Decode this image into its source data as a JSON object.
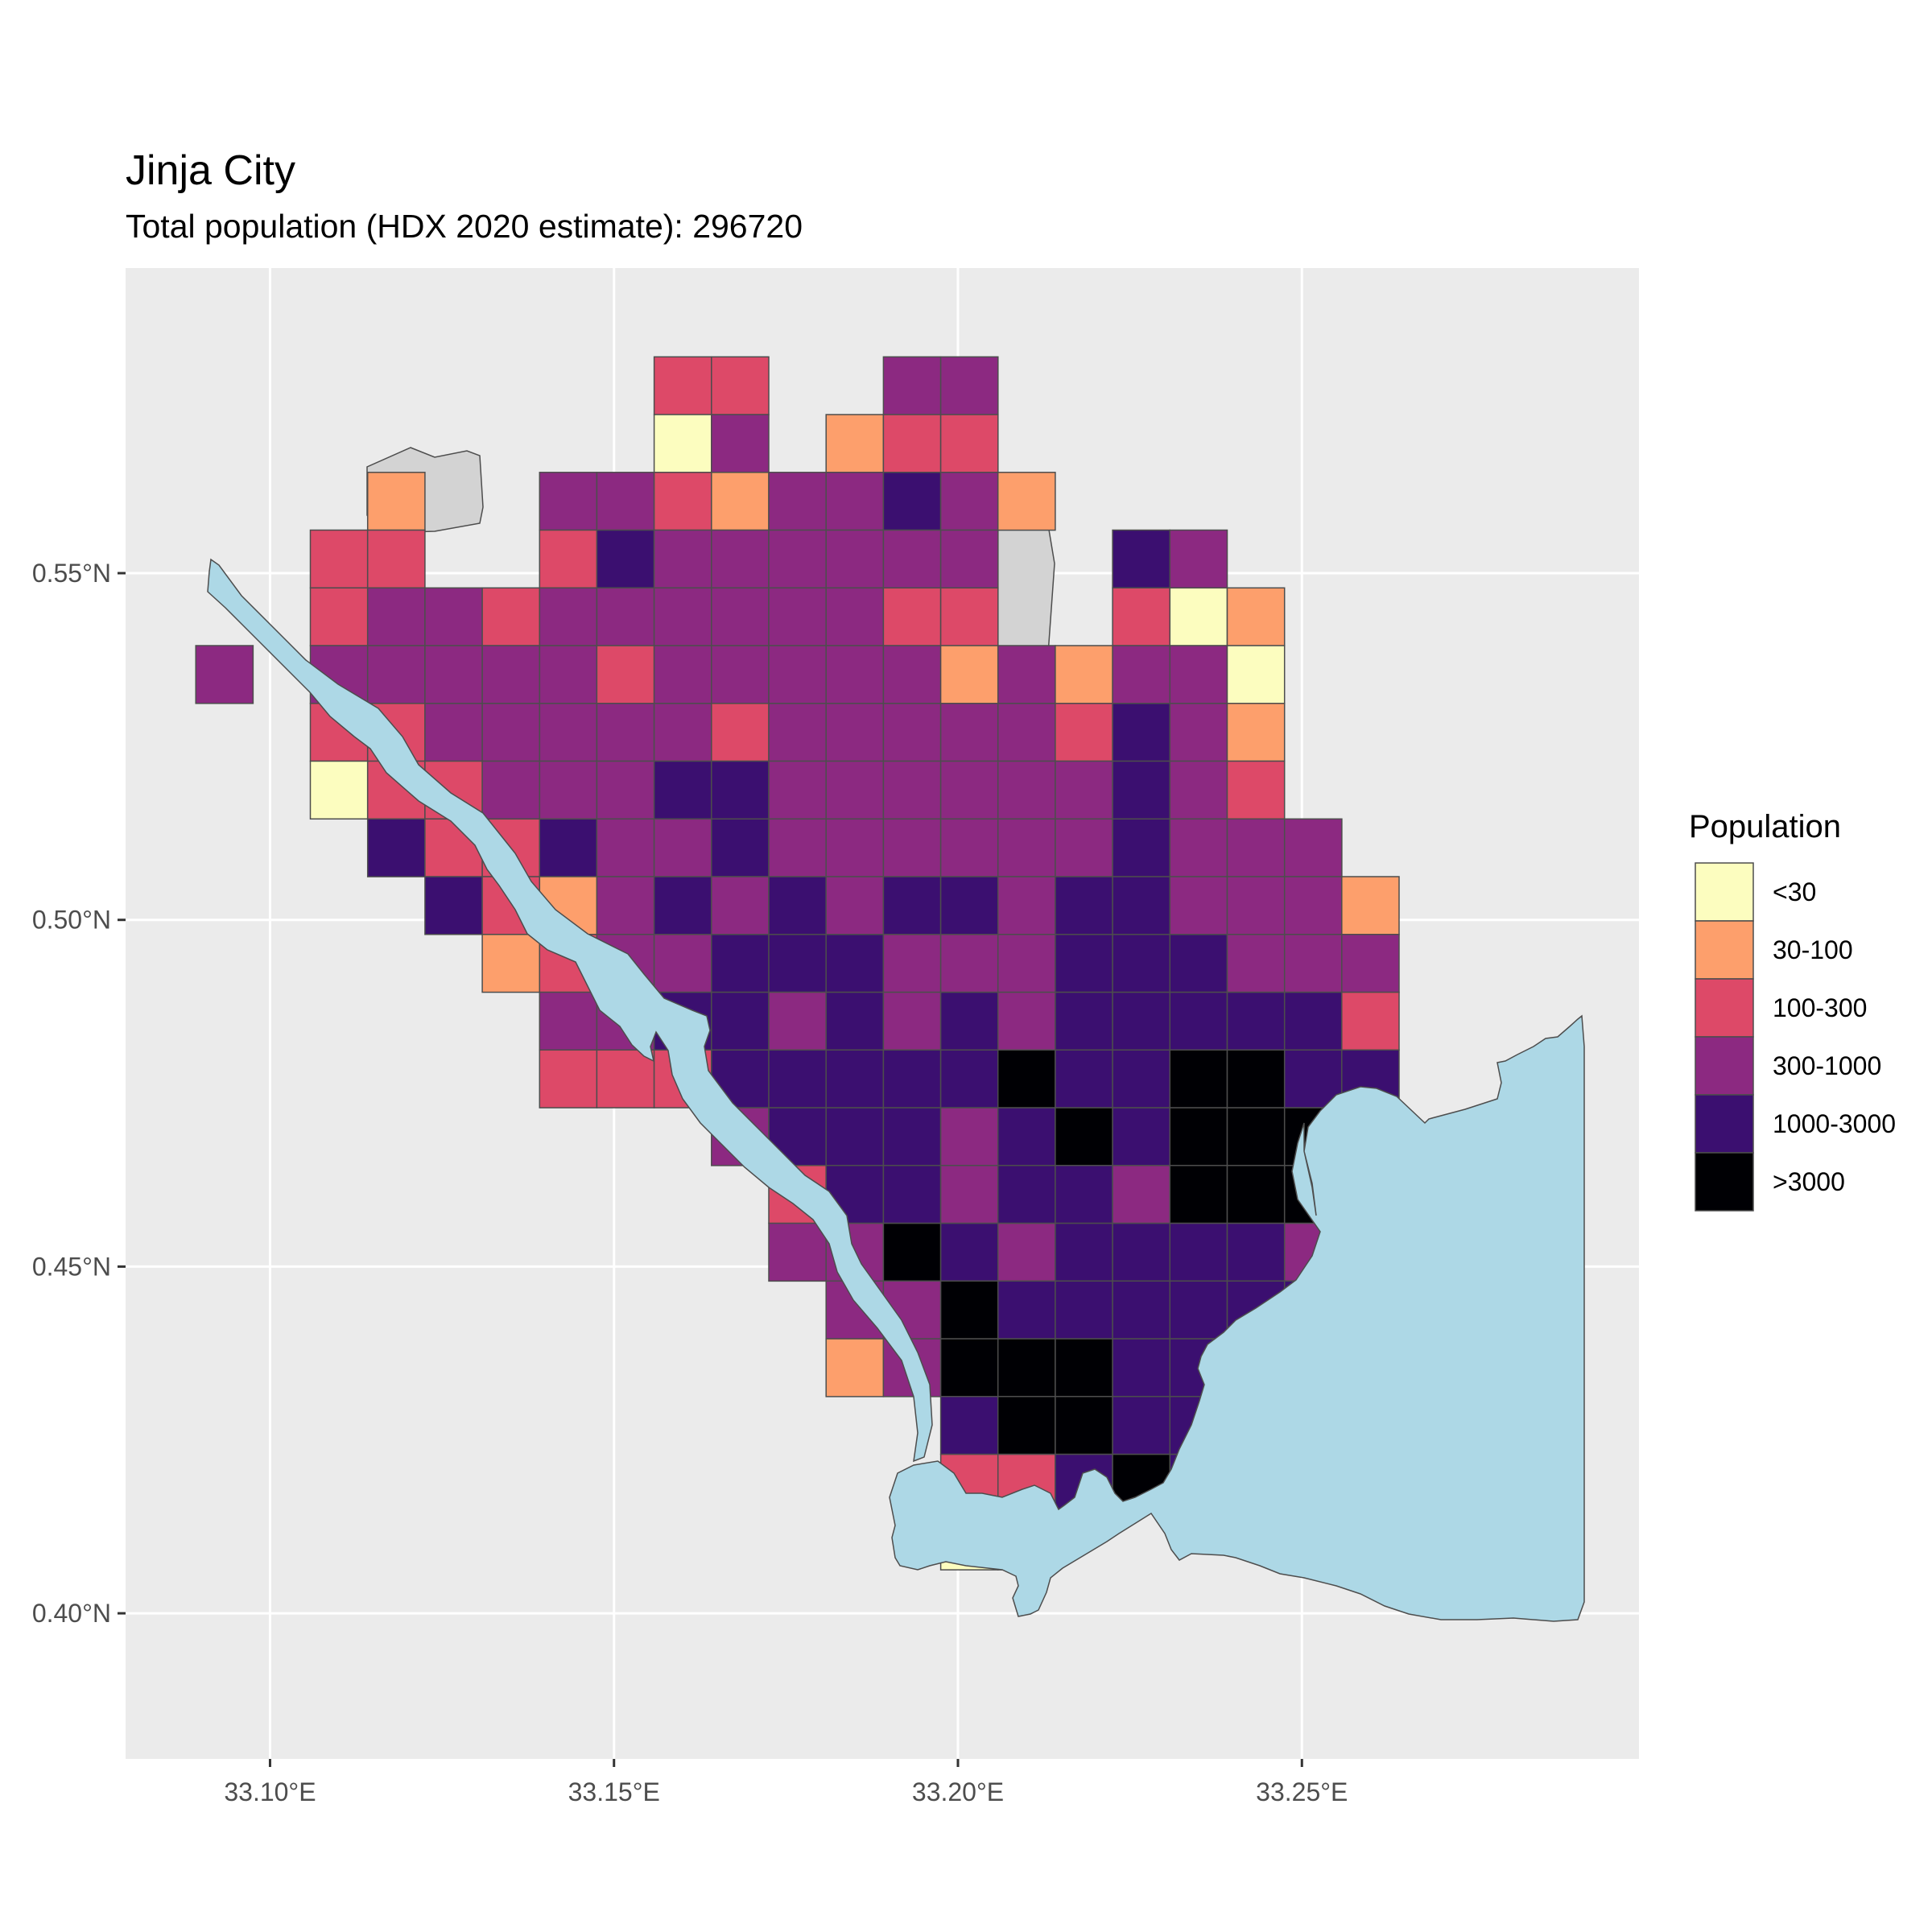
{
  "map": {
    "title": "Jinja City",
    "subtitle": "Total population (HDX 2020 estimate): 296720",
    "lon_ticks": [
      {
        "value": 33.1,
        "label": "33.10°E"
      },
      {
        "value": 33.15,
        "label": "33.15°E"
      },
      {
        "value": 33.2,
        "label": "33.20°E"
      },
      {
        "value": 33.25,
        "label": "33.25°E"
      }
    ],
    "lat_ticks": [
      {
        "value": 0.55,
        "label": "0.55°N"
      },
      {
        "value": 0.5,
        "label": "0.50°N"
      },
      {
        "value": 0.45,
        "label": "0.45°N"
      },
      {
        "value": 0.4,
        "label": "0.40°N"
      }
    ],
    "lon_range": [
      33.079,
      33.299
    ],
    "lat_range": [
      0.379,
      0.594
    ],
    "panel_background": "#ebebeb",
    "gridline_color": "#ffffff",
    "water_color": "#add8e6",
    "no_data_color": "#d3d3d3",
    "grid_first_lon": 33.0892,
    "grid_first_lat": 0.5812,
    "cell_size_deg": 0.00833,
    "legend": {
      "title": "Population",
      "classes": [
        {
          "code": "A",
          "label": "<30",
          "color": "#fcfdbf"
        },
        {
          "code": "B",
          "label": "30-100",
          "color": "#fd9f6c"
        },
        {
          "code": "C",
          "label": "100-300",
          "color": "#dd4968"
        },
        {
          "code": "D",
          "label": "300-1000",
          "color": "#8c2981"
        },
        {
          "code": "E",
          "label": "1000-3000",
          "color": "#3b0f70"
        },
        {
          "code": "F",
          "label": ">3000",
          "color": "#000004"
        }
      ]
    },
    "grid_rows": [
      "........CC..DD......",
      "........AD.BCC......",
      "...B..DDCBDDEDB.....",
      "..CC..CEDDDDDD..ED..",
      "..CDDCDDDDDDCC..CAB.",
      "D.DDDDDCDDDDDBDBDDA.",
      "..CCDDDDDCDDDDDCEDB.",
      "..ACCDDDEEDDDDDDEDC.",
      "...ECCEDDEDDDDDDEDDD",
      "....ECBDEDEDEEDEEDDDB",
      ".....BCDDEEEDDDEEEDDD",
      "......DDEEDEDEDEEEEEC",
      "......CCCEEEEEFEEFFEE",
      ".........DEEEDEFEFFFF",
      "..........CEEDEEDFFFE",
      "..........DDFEDEEEEDD",
      "...........DDFEEEEEEEC",
      "...........BDFFFEEE",
      ".............EFFEEC",
      ".............CCEFED",
      ".............AA"
    ]
  }
}
